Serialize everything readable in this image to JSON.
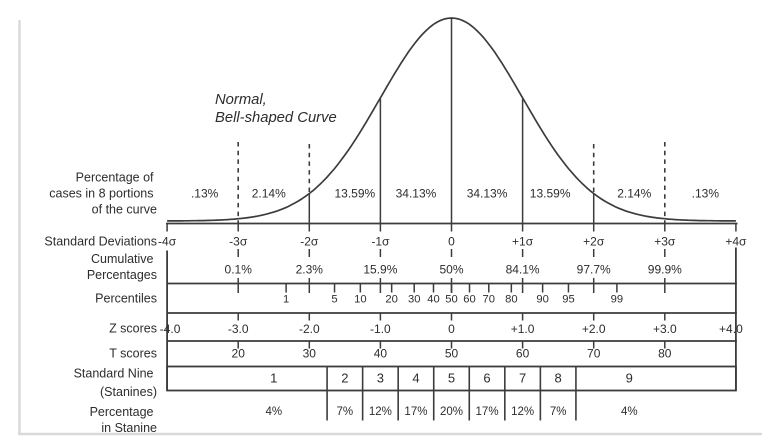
{
  "chart_data": {
    "type": "area",
    "title": "Normal, Bell-shaped Curve",
    "title_lines": [
      "Normal,",
      "Bell-shaped Curve"
    ],
    "curve": {
      "distribution": "standard-normal",
      "mean_sigma": 0,
      "x_range_sigma": [
        -4,
        4
      ],
      "grid": false
    },
    "rows": [
      {
        "id": "portions",
        "label": "Percentage of cases in 8 portions of the curve",
        "label_lines": [
          "Percentage of",
          "cases in 8 portions",
          "of the curve"
        ],
        "segment_centers_sigma": [
          -3.5,
          -2.5,
          -1.5,
          -0.5,
          0.5,
          1.5,
          2.5,
          3.5
        ],
        "values": [
          ".13%",
          "2.14%",
          "13.59%",
          "34.13%",
          "34.13%",
          "13.59%",
          "2.14%",
          ".13%"
        ]
      },
      {
        "id": "standard_deviations",
        "label": "Standard Deviations",
        "ticks_sigma": [
          -4,
          -3,
          -2,
          -1,
          0,
          1,
          2,
          3,
          4
        ],
        "values": [
          "-4σ",
          "-3σ",
          "-2σ",
          "-1σ",
          "0",
          "+1σ",
          "+2σ",
          "+3σ",
          "+4σ"
        ]
      },
      {
        "id": "cumulative_percentages",
        "label": "Cumulative Percentages",
        "label_lines": [
          "Cumulative",
          "Percentages"
        ],
        "ticks_sigma": [
          -3,
          -2,
          -1,
          0,
          1,
          2,
          3
        ],
        "values": [
          "0.1%",
          "2.3%",
          "15.9%",
          "50%",
          "84.1%",
          "97.7%",
          "99.9%"
        ]
      },
      {
        "id": "percentiles",
        "label": "Percentiles",
        "values": [
          "1",
          "5",
          "10",
          "20",
          "30",
          "40",
          "50",
          "60",
          "70",
          "80",
          "90",
          "95",
          "99"
        ]
      },
      {
        "id": "z_scores",
        "label": "Z scores",
        "ticks_sigma": [
          -4,
          -3,
          -2,
          -1,
          0,
          1,
          2,
          3,
          4
        ],
        "values": [
          "-4.0",
          "-3.0",
          "-2.0",
          "-1.0",
          "0",
          "+1.0",
          "+2.0",
          "+3.0",
          "+4.0"
        ]
      },
      {
        "id": "t_scores",
        "label": "T scores",
        "ticks_sigma": [
          -3,
          -2,
          -1,
          0,
          1,
          2,
          3
        ],
        "values": [
          "20",
          "30",
          "40",
          "50",
          "60",
          "70",
          "80"
        ]
      },
      {
        "id": "stanines",
        "label": "Standard Nine (Stanines)",
        "label_lines": [
          "Standard Nine",
          "(Stanines)"
        ],
        "boundaries_sigma": [
          -1.75,
          -1.25,
          -0.75,
          -0.25,
          0.25,
          0.75,
          1.25,
          1.75
        ],
        "values": [
          "1",
          "2",
          "3",
          "4",
          "5",
          "6",
          "7",
          "8",
          "9"
        ]
      },
      {
        "id": "stanine_percentages",
        "label": "Percentage in Stanine",
        "label_lines": [
          "Percentage",
          "in Stanine"
        ],
        "values": [
          "4%",
          "7%",
          "12%",
          "17%",
          "20%",
          "17%",
          "12%",
          "7%",
          "4%"
        ]
      }
    ]
  },
  "colors": {
    "ink": "#2d2d2d",
    "line": "#3c3c3c",
    "scan_border": "#d9d9d9",
    "background": "#ffffff"
  }
}
